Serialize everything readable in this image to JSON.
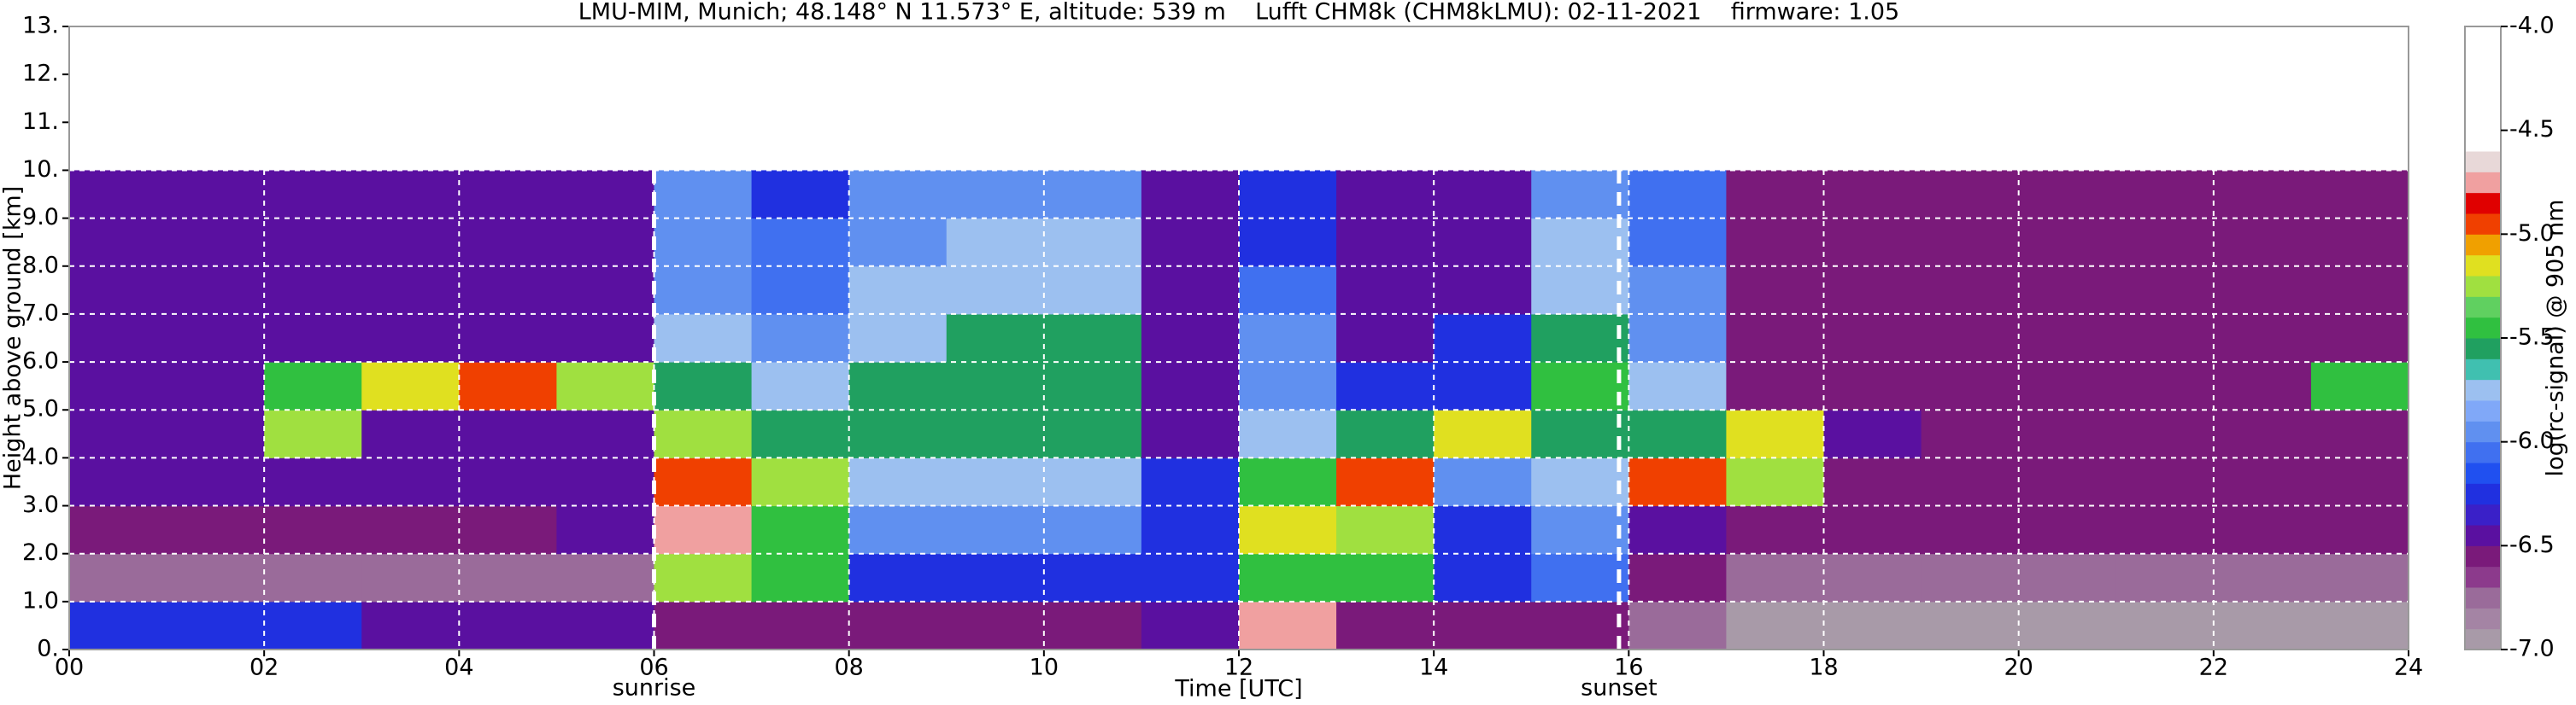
{
  "chart_data": {
    "type": "heatmap",
    "title": "LMU-MIM, Munich; 48.148° N 11.573° E, altitude: 539 m    Lufft CHM8k (CHM8kLMU): 02-11-2021    firmware: 1.05",
    "x_label": "Time [UTC]",
    "y_label": "Height above ground [km]",
    "xlim": [
      0,
      24
    ],
    "xticks": [
      {
        "value": 0,
        "label": "00"
      },
      {
        "value": 2,
        "label": "02"
      },
      {
        "value": 4,
        "label": "04"
      },
      {
        "value": 6,
        "label": "06"
      },
      {
        "value": 8,
        "label": "08"
      },
      10,
      12,
      14,
      16,
      18,
      20,
      22,
      24
    ],
    "ylim": [
      0,
      13
    ],
    "yticks": [
      {
        "value": 0,
        "label": "0."
      },
      {
        "value": 1,
        "label": "1.0"
      },
      {
        "value": 2,
        "label": "2.0"
      },
      {
        "value": 3,
        "label": "3.0"
      },
      {
        "value": 4,
        "label": "4.0"
      },
      {
        "value": 5,
        "label": "5.0"
      },
      {
        "value": 6,
        "label": "6.0"
      },
      {
        "value": 7,
        "label": "7.0"
      },
      {
        "value": 8,
        "label": "8.0"
      },
      {
        "value": 9,
        "label": "9.0"
      },
      {
        "value": 10,
        "label": "10."
      },
      {
        "value": 11,
        "label": "11."
      },
      {
        "value": 12,
        "label": "12."
      },
      {
        "value": 13,
        "label": "13."
      }
    ],
    "grid": true,
    "xbins": [
      0,
      1,
      2,
      3,
      4,
      5,
      6,
      7,
      8,
      9,
      10,
      11,
      12,
      13,
      14,
      15,
      16,
      17,
      18,
      19,
      20,
      21,
      22,
      23,
      24
    ],
    "ybins": [
      0,
      1,
      2,
      3,
      4,
      5,
      6,
      7,
      8,
      9,
      10
    ],
    "values": [
      [
        -6.3,
        -6.7,
        -6.6,
        -6.5,
        -6.5,
        -6.5,
        -6.5,
        -6.5,
        -6.5,
        -6.5
      ],
      [
        -6.2,
        -6.7,
        -6.6,
        -6.5,
        -6.5,
        -6.5,
        -6.5,
        -6.5,
        -6.5,
        -6.5
      ],
      [
        -6.3,
        -6.7,
        -6.6,
        -6.5,
        -5.3,
        -5.5,
        -6.5,
        -6.5,
        -6.5,
        -6.5
      ],
      [
        -6.4,
        -6.7,
        -6.6,
        -6.5,
        -6.4,
        -5.2,
        -6.5,
        -6.5,
        -6.5,
        -6.5
      ],
      [
        -6.5,
        -6.7,
        -6.6,
        -6.5,
        -6.4,
        -5.0,
        -6.5,
        -6.5,
        -6.5,
        -6.5
      ],
      [
        -6.5,
        -6.7,
        -6.5,
        -6.4,
        -6.4,
        -5.3,
        -6.4,
        -6.4,
        -6.4,
        -6.4
      ],
      [
        -6.6,
        -5.3,
        -4.8,
        -4.9,
        -5.3,
        -5.6,
        -5.8,
        -5.9,
        -6.0,
        -6.0
      ],
      [
        -6.6,
        -5.4,
        -5.5,
        -5.3,
        -5.6,
        -5.8,
        -6.0,
        -6.1,
        -6.1,
        -6.2
      ],
      [
        -6.6,
        -6.2,
        -6.0,
        -5.8,
        -5.6,
        -5.6,
        -5.7,
        -5.8,
        -5.9,
        -6.0
      ],
      [
        -6.6,
        -6.2,
        -6.0,
        -5.7,
        -5.6,
        -5.6,
        -5.6,
        -5.7,
        -5.8,
        -5.9
      ],
      [
        -6.6,
        -6.2,
        -6.0,
        -5.7,
        -5.6,
        -5.6,
        -5.6,
        -5.7,
        -5.8,
        -5.9
      ],
      [
        -6.4,
        -6.2,
        -6.2,
        -6.3,
        -6.4,
        -6.4,
        -6.4,
        -6.4,
        -6.4,
        -6.4
      ],
      [
        -4.8,
        -5.4,
        -5.2,
        -5.5,
        -5.8,
        -5.9,
        -6.0,
        -6.1,
        -6.2,
        -6.3
      ],
      [
        -6.6,
        -5.5,
        -5.3,
        -4.9,
        -5.6,
        -6.3,
        -6.4,
        -6.4,
        -6.4,
        -6.4
      ],
      [
        -6.6,
        -6.2,
        -6.2,
        -6.0,
        -5.2,
        -6.2,
        -6.3,
        -6.4,
        -6.4,
        -6.4
      ],
      [
        -6.6,
        -6.1,
        -6.0,
        -5.7,
        -5.6,
        -5.5,
        -5.6,
        -5.7,
        -5.8,
        -5.9
      ],
      [
        -6.8,
        -6.6,
        -6.5,
        -5.0,
        -5.6,
        -5.8,
        -5.9,
        -6.0,
        -6.1,
        -6.1
      ],
      [
        -6.9,
        -6.7,
        -6.6,
        -5.3,
        -5.2,
        -6.6,
        -6.6,
        -6.6,
        -6.6,
        -6.6
      ],
      [
        -6.9,
        -6.7,
        -6.6,
        -6.6,
        -6.5,
        -6.6,
        -6.6,
        -6.6,
        -6.6,
        -6.6
      ],
      [
        -6.9,
        -6.7,
        -6.6,
        -6.6,
        -6.6,
        -6.6,
        -6.6,
        -6.6,
        -6.6,
        -6.6
      ],
      [
        -6.9,
        -6.7,
        -6.6,
        -6.6,
        -6.6,
        -6.6,
        -6.6,
        -6.6,
        -6.6,
        -6.6
      ],
      [
        -6.9,
        -6.7,
        -6.6,
        -6.6,
        -6.6,
        -6.6,
        -6.6,
        -6.6,
        -6.6,
        -6.6
      ],
      [
        -6.9,
        -6.7,
        -6.6,
        -6.6,
        -6.6,
        -6.6,
        -6.6,
        -6.6,
        -6.6,
        -6.6
      ],
      [
        -6.9,
        -6.7,
        -6.6,
        -6.6,
        -6.6,
        -5.5,
        -6.6,
        -6.6,
        -6.6,
        -6.6
      ]
    ],
    "annotations": [
      {
        "x": 6.0,
        "label": "sunrise"
      },
      {
        "x": 15.9,
        "label": "sunset"
      }
    ],
    "colorbar": {
      "label": "log(rc-signal) @ 905 nm",
      "lim": [
        -7,
        -4
      ],
      "ticks": [
        {
          "value": -4,
          "label": "-4.0"
        },
        -4.5,
        {
          "value": -5,
          "label": "-5.0"
        },
        -5.5,
        {
          "value": -6,
          "label": "-6.0"
        },
        -6.5,
        {
          "value": -7,
          "label": "-7.0"
        }
      ],
      "colors": [
        "#a89aa8",
        "#a484a4",
        "#9a6b9a",
        "#8c3a8c",
        "#7a1a7a",
        "#5a10a0",
        "#3a20c8",
        "#2030e0",
        "#2050f0",
        "#4070f0",
        "#6090f0",
        "#80a8f8",
        "#9cc0f0",
        "#40c0b0",
        "#20a060",
        "#30c040",
        "#60d060",
        "#a0e040",
        "#e0e020",
        "#f0a000",
        "#f04000",
        "#e00000",
        "#f0a0a0",
        "#e8d8d8",
        "#ffffff",
        "#ffffff",
        "#ffffff",
        "#ffffff",
        "#ffffff",
        "#ffffff"
      ]
    }
  }
}
